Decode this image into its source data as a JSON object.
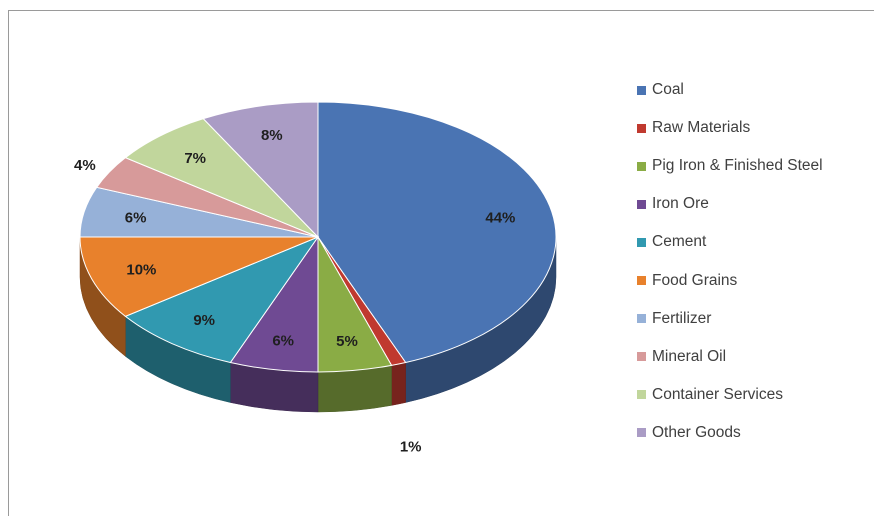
{
  "chart_data": {
    "type": "pie",
    "title": "",
    "legend_position": "right",
    "categories": [
      "Coal",
      "Raw Materials",
      "Pig Iron & Finished Steel",
      "Iron Ore",
      "Cement",
      "Food Grains",
      "Fertilizer",
      "Mineral Oil",
      "Container Services",
      "Other Goods"
    ],
    "values": [
      44,
      1,
      5,
      6,
      9,
      10,
      6,
      4,
      7,
      8
    ],
    "labels": [
      "44%",
      "1%",
      "5%",
      "6%",
      "9%",
      "10%",
      "6%",
      "4%",
      "7%",
      "8%"
    ],
    "colors": [
      "#4a74b3",
      "#c0392f",
      "#8aac45",
      "#6f4a93",
      "#3199b0",
      "#e8812c",
      "#96b1d8",
      "#d79a9a",
      "#c1d69c",
      "#aa9cc5"
    ]
  }
}
